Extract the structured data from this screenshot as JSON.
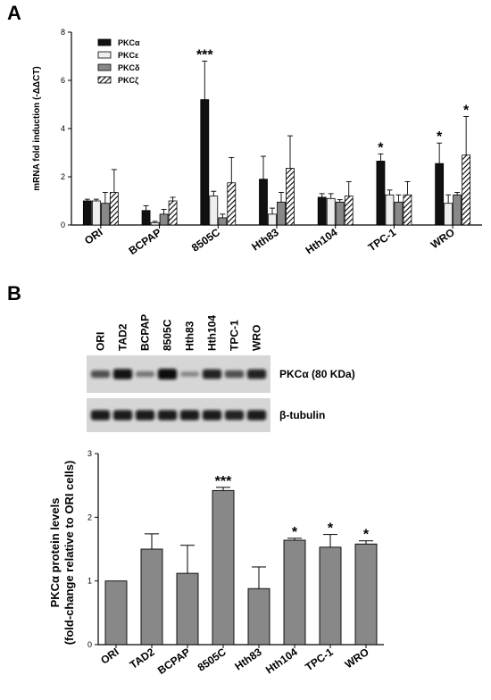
{
  "panel_a_label": "A",
  "panel_b_label": "B",
  "chart_data": [
    {
      "type": "bar",
      "ylabel": "mRNA fold induction (-ΔΔCT)",
      "ylim": [
        0,
        8
      ],
      "yticks": [
        0,
        2,
        4,
        6,
        8
      ],
      "categories": [
        "ORI",
        "BCPAP",
        "8505C",
        "Hth83",
        "Hth104",
        "TPC-1",
        "WRO"
      ],
      "legend_position": "top-left",
      "series": [
        {
          "name": "PKCα",
          "fill": "black",
          "values": [
            1.0,
            0.6,
            5.2,
            1.9,
            1.15,
            2.65,
            2.55
          ],
          "errors": [
            0.07,
            0.2,
            1.6,
            0.95,
            0.15,
            0.3,
            0.85
          ]
        },
        {
          "name": "PKCε",
          "fill": "white",
          "values": [
            1.0,
            0.1,
            1.2,
            0.45,
            1.1,
            1.25,
            0.9
          ],
          "errors": [
            0.07,
            0.05,
            0.2,
            0.25,
            0.2,
            0.2,
            0.35
          ]
        },
        {
          "name": "PKCδ",
          "fill": "gray",
          "values": [
            0.9,
            0.45,
            0.3,
            0.95,
            0.95,
            0.95,
            1.25
          ],
          "errors": [
            0.45,
            0.2,
            0.15,
            0.4,
            0.1,
            0.3,
            0.1
          ]
        },
        {
          "name": "PKCζ",
          "fill": "hatched",
          "values": [
            1.35,
            1.0,
            1.75,
            2.35,
            1.2,
            1.25,
            2.9
          ],
          "errors": [
            0.95,
            0.15,
            1.05,
            1.35,
            0.6,
            0.55,
            1.6
          ]
        }
      ],
      "annotations": [
        {
          "category": "8505C",
          "series": "PKCα",
          "text": "***"
        },
        {
          "category": "TPC-1",
          "series": "PKCα",
          "text": "*"
        },
        {
          "category": "WRO",
          "series": "PKCα",
          "text": "*"
        },
        {
          "category": "WRO",
          "series": "PKCζ",
          "text": "*"
        }
      ]
    },
    {
      "type": "bar",
      "ylabel_line1": "PKCα protein levels",
      "ylabel_line2": "(fold-change relative to ORI cells)",
      "ylim": [
        0,
        3
      ],
      "yticks": [
        0,
        1,
        2,
        3
      ],
      "categories": [
        "ORI",
        "TAD2",
        "BCPAP",
        "8505C",
        "Hth83",
        "Hth104",
        "TPC-1",
        "WRO"
      ],
      "series": [
        {
          "fill": "gray",
          "values": [
            1.0,
            1.5,
            1.12,
            2.42,
            0.88,
            1.64,
            1.53,
            1.58
          ],
          "errors": [
            0.0,
            0.24,
            0.44,
            0.05,
            0.34,
            0.03,
            0.2,
            0.05
          ]
        }
      ],
      "annotations": [
        {
          "category": "8505C",
          "text": "***"
        },
        {
          "category": "Hth104",
          "text": "*"
        },
        {
          "category": "TPC-1",
          "text": "*"
        },
        {
          "category": "WRO",
          "text": "*"
        }
      ]
    }
  ],
  "blot": {
    "lanes": [
      "ORI",
      "TAD2",
      "BCPAP",
      "8505C",
      "Hth83",
      "Hth104",
      "TPC-1",
      "WRO"
    ],
    "rows": [
      {
        "label": "PKCα (80 KDa)",
        "intensity": [
          0.55,
          0.95,
          0.3,
          1.0,
          0.2,
          0.85,
          0.55,
          0.85
        ]
      },
      {
        "label": "β-tubulin",
        "intensity": [
          0.9,
          0.9,
          0.9,
          0.9,
          0.9,
          0.9,
          0.85,
          0.9
        ]
      }
    ],
    "band_color": "#111111",
    "background_color": "#d6d6d6"
  }
}
